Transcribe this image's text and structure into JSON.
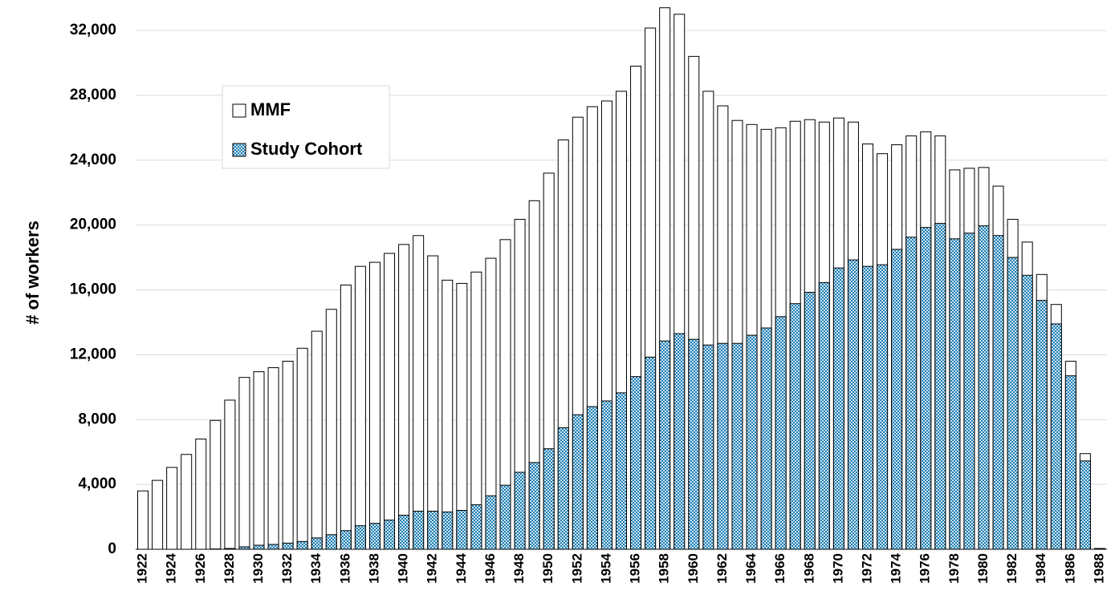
{
  "chart_data": {
    "type": "bar",
    "overlay": true,
    "y_label": "# of workers",
    "categories": [
      "1922",
      null,
      "1924",
      null,
      "1926",
      null,
      "1928",
      null,
      "1930",
      null,
      "1932",
      null,
      "1934",
      null,
      "1936",
      null,
      "1938",
      null,
      "1940",
      null,
      "1942",
      null,
      "1944",
      null,
      "1946",
      null,
      "1948",
      null,
      "1950",
      null,
      "1952",
      null,
      "1954",
      null,
      "1956",
      null,
      "1958",
      null,
      "1960",
      null,
      "1962",
      null,
      "1964",
      null,
      "1966",
      null,
      "1968",
      null,
      "1970",
      null,
      "1972",
      null,
      "1974",
      null,
      "1976",
      null,
      "1978",
      null,
      "1980",
      null,
      "1982",
      null,
      "1984",
      null,
      "1986",
      null,
      "1988"
    ],
    "series": [
      {
        "name": "MMF",
        "color": "#ffffff",
        "values": [
          3600,
          4250,
          5050,
          5850,
          6800,
          7950,
          9200,
          10600,
          10950,
          11200,
          11600,
          12400,
          13450,
          14800,
          16300,
          17450,
          17700,
          18250,
          18800,
          19350,
          18100,
          16600,
          16400,
          17100,
          17950,
          19100,
          20350,
          21500,
          23200,
          25250,
          26650,
          27300,
          27650,
          28250,
          29800,
          32150,
          33400,
          33000,
          30400,
          28250,
          27350,
          26450,
          26200,
          25900,
          26000,
          26400,
          26500,
          26350,
          26600,
          26350,
          25000,
          24400,
          24950,
          25500,
          25750,
          25500,
          23400,
          23500,
          23550,
          22400,
          20350,
          18950,
          16950,
          15100,
          11600,
          5900,
          50
        ]
      },
      {
        "name": "Study Cohort",
        "color": "#1f7fb4",
        "values": [
          0,
          0,
          0,
          0,
          0,
          20,
          50,
          150,
          250,
          300,
          380,
          480,
          700,
          900,
          1150,
          1450,
          1600,
          1800,
          2100,
          2350,
          2350,
          2300,
          2400,
          2750,
          3300,
          3950,
          4750,
          5350,
          6200,
          7500,
          8300,
          8800,
          9150,
          9650,
          10650,
          11850,
          12850,
          13300,
          12950,
          12600,
          12700,
          12700,
          13200,
          13650,
          14350,
          15150,
          15850,
          16450,
          17350,
          17850,
          17450,
          17550,
          18500,
          19250,
          19850,
          20100,
          19150,
          19500,
          19950,
          19350,
          18000,
          16900,
          15350,
          13900,
          10700,
          5450,
          30
        ]
      }
    ],
    "ylim": [
      0,
      33500
    ],
    "yticks": [
      0,
      {
        "value": 4000,
        "label": "4,000"
      },
      {
        "value": 8000,
        "label": "8,000"
      },
      {
        "value": 12000,
        "label": "12,000"
      },
      {
        "value": 16000,
        "label": "16,000"
      },
      {
        "value": 20000,
        "label": "20,000"
      },
      {
        "value": 24000,
        "label": "24,000"
      },
      {
        "value": 28000,
        "label": "28,000"
      },
      {
        "value": 32000,
        "label": "32,000"
      }
    ],
    "grid": true
  }
}
